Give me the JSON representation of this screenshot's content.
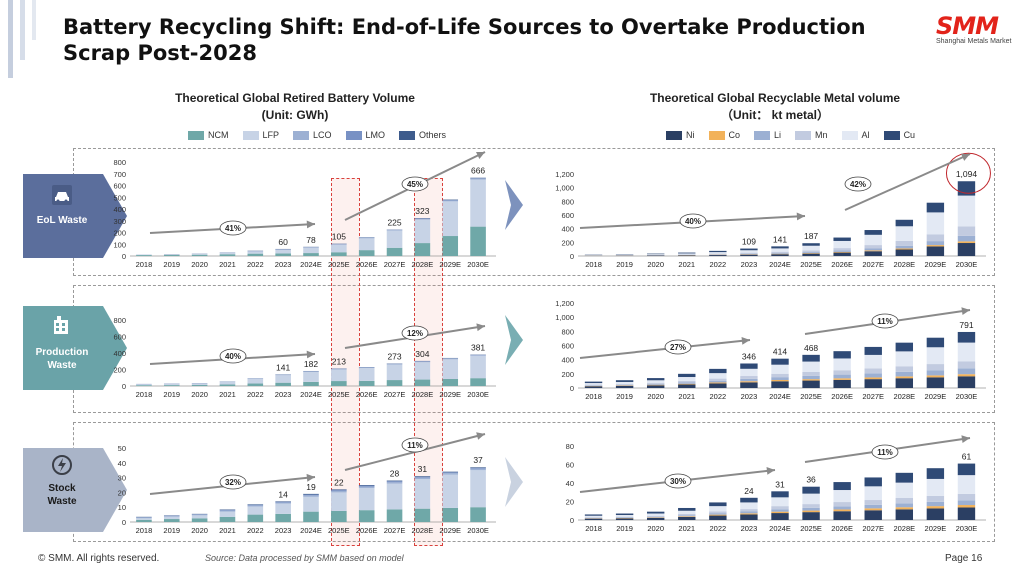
{
  "title": "Battery Recycling Shift: End-of-Life Sources to Overtake Production Scrap Post-2028",
  "logo": {
    "main": "SMM",
    "sub": "Shanghai Metals Market"
  },
  "left_title": {
    "line1": "Theoretical Global Retired Battery Volume",
    "line2": "(Unit: GWh)"
  },
  "right_title": {
    "line1": "Theoretical Global Recyclable Metal volume",
    "line2": "（Unit： kt metal）"
  },
  "left_legend": [
    {
      "name": "NCM",
      "color": "#6fa8a8"
    },
    {
      "name": "LFP",
      "color": "#c7d3e6"
    },
    {
      "name": "LCO",
      "color": "#9cb0d3"
    },
    {
      "name": "LMO",
      "color": "#7891c4"
    },
    {
      "name": "Others",
      "color": "#3d5b8c"
    }
  ],
  "right_legend": [
    {
      "name": "Ni",
      "color": "#2b3f63"
    },
    {
      "name": "Co",
      "color": "#f2b25a"
    },
    {
      "name": "Li",
      "color": "#9cb0d3"
    },
    {
      "name": "Mn",
      "color": "#c2cbe0"
    },
    {
      "name": "Al",
      "color": "#e3e9f4"
    },
    {
      "name": "Cu",
      "color": "#2f4a76"
    }
  ],
  "row_labels": [
    {
      "line1": "EoL Waste",
      "line2": "",
      "color": "#5b6e9c"
    },
    {
      "line1": "Production",
      "line2": "Waste",
      "color": "#6aa3a8"
    },
    {
      "line1": "Stock",
      "line2": "Waste",
      "color": "#a9b4c8"
    }
  ],
  "footer": "© SMM. All rights reserved.",
  "source": "Source: Data processed by SMM based on model",
  "page": "Page 16",
  "chart_data": [
    {
      "type": "bar",
      "stacked": true,
      "unit": "GWh",
      "categories": [
        "2018",
        "2019",
        "2020",
        "2021",
        "2022",
        "2023",
        "2024E",
        "2025E",
        "2026E",
        "2027E",
        "2028E",
        "2029E",
        "2030E"
      ],
      "ylim": [
        0,
        800
      ],
      "yticks": [
        0,
        100,
        200,
        300,
        400,
        500,
        600,
        700,
        800
      ],
      "totals": [
        12,
        15,
        20,
        30,
        45,
        60,
        78,
        105,
        160,
        225,
        323,
        480,
        666
      ],
      "data_labels": {
        "2023": "60",
        "2024E": "78",
        "2025E": "105",
        "2027E": "225",
        "2028E": "323",
        "2030E": "666"
      },
      "series": [
        {
          "name": "NCM",
          "values": [
            8,
            9,
            11,
            15,
            20,
            22,
            25,
            32,
            50,
            70,
            110,
            170,
            250
          ]
        },
        {
          "name": "LFP",
          "values": [
            2,
            3,
            5,
            10,
            18,
            30,
            45,
            63,
            100,
            145,
            200,
            295,
            400
          ]
        },
        {
          "name": "LCO",
          "values": [
            1,
            1,
            2,
            2,
            3,
            4,
            4,
            5,
            5,
            5,
            6,
            7,
            7
          ]
        },
        {
          "name": "LMO",
          "values": [
            1,
            1,
            1,
            2,
            2,
            2,
            2,
            3,
            3,
            3,
            4,
            4,
            5
          ]
        },
        {
          "name": "Others",
          "values": [
            0,
            1,
            1,
            1,
            2,
            2,
            2,
            2,
            2,
            2,
            3,
            4,
            4
          ]
        }
      ],
      "trend_labels": [
        "41%",
        "45%"
      ]
    },
    {
      "type": "bar",
      "stacked": true,
      "unit": "kt metal",
      "categories": [
        "2018",
        "2019",
        "2020",
        "2021",
        "2022",
        "2023",
        "2024E",
        "2025E",
        "2026E",
        "2027E",
        "2028E",
        "2029E",
        "2030E"
      ],
      "ylim": [
        0,
        1200
      ],
      "yticks": [
        "0",
        "200",
        "400",
        "600",
        "800",
        "1,000",
        "1,200"
      ],
      "totals": [
        20,
        25,
        35,
        50,
        75,
        109,
        141,
        187,
        270,
        380,
        530,
        780,
        1094
      ],
      "data_labels": {
        "2023": "109",
        "2024E": "141",
        "2025E": "187",
        "2030E": "1,094"
      },
      "series": [
        {
          "name": "Ni",
          "values": [
            4,
            5,
            7,
            10,
            14,
            20,
            26,
            35,
            50,
            70,
            95,
            140,
            190
          ]
        },
        {
          "name": "Co",
          "values": [
            2,
            2,
            3,
            4,
            5,
            6,
            7,
            8,
            10,
            12,
            15,
            20,
            24
          ]
        },
        {
          "name": "Li",
          "values": [
            2,
            2,
            3,
            4,
            6,
            8,
            11,
            14,
            20,
            28,
            40,
            58,
            80
          ]
        },
        {
          "name": "Mn",
          "values": [
            3,
            4,
            5,
            7,
            10,
            15,
            19,
            25,
            36,
            50,
            70,
            100,
            140
          ]
        },
        {
          "name": "Al",
          "values": [
            5,
            7,
            9,
            13,
            22,
            35,
            48,
            68,
            104,
            150,
            215,
            320,
            450
          ]
        },
        {
          "name": "Cu",
          "values": [
            4,
            5,
            8,
            12,
            18,
            25,
            30,
            37,
            50,
            70,
            95,
            142,
            210
          ]
        }
      ],
      "trend_labels": [
        "40%",
        "42%"
      ]
    },
    {
      "type": "bar",
      "stacked": true,
      "unit": "GWh",
      "categories": [
        "2018",
        "2019",
        "2020",
        "2021",
        "2022",
        "2023",
        "2024E",
        "2025E",
        "2026E",
        "2027E",
        "2028E",
        "2029E",
        "2030E"
      ],
      "ylim": [
        0,
        800
      ],
      "yticks": [
        0,
        200,
        400,
        600,
        800
      ],
      "totals": [
        25,
        30,
        35,
        55,
        95,
        141,
        182,
        213,
        230,
        273,
        304,
        340,
        381
      ],
      "data_labels": {
        "2023": "141",
        "2024E": "182",
        "2025E": "213",
        "2027E": "273",
        "2028E": "304",
        "2030E": "381"
      },
      "series": [
        {
          "name": "NCM",
          "values": [
            10,
            11,
            12,
            18,
            30,
            40,
            50,
            60,
            62,
            72,
            78,
            85,
            95
          ]
        },
        {
          "name": "LFP",
          "values": [
            10,
            13,
            16,
            30,
            57,
            90,
            120,
            140,
            155,
            186,
            210,
            238,
            270
          ]
        },
        {
          "name": "LCO",
          "values": [
            3,
            3,
            4,
            4,
            5,
            6,
            7,
            7,
            7,
            8,
            8,
            9,
            9
          ]
        },
        {
          "name": "LMO",
          "values": [
            1,
            2,
            2,
            2,
            2,
            3,
            3,
            4,
            4,
            4,
            5,
            5,
            4
          ]
        },
        {
          "name": "Others",
          "values": [
            1,
            1,
            1,
            1,
            1,
            2,
            2,
            2,
            2,
            3,
            3,
            3,
            3
          ]
        }
      ],
      "trend_labels": [
        "40%",
        "12%"
      ]
    },
    {
      "type": "bar",
      "stacked": true,
      "unit": "kt metal",
      "categories": [
        "2018",
        "2019",
        "2020",
        "2021",
        "2022",
        "2023",
        "2024E",
        "2025E",
        "2026E",
        "2027E",
        "2028E",
        "2029E",
        "2030E"
      ],
      "ylim": [
        0,
        1200
      ],
      "yticks": [
        "0",
        "200",
        "400",
        "600",
        "800",
        "1,000",
        "1,200"
      ],
      "totals": [
        90,
        110,
        140,
        200,
        270,
        346,
        414,
        468,
        520,
        580,
        640,
        710,
        791
      ],
      "data_labels": {
        "2023": "346",
        "2024E": "414",
        "2025E": "468",
        "2030E": "791"
      },
      "series": [
        {
          "name": "Ni",
          "values": [
            25,
            30,
            38,
            50,
            65,
            80,
            95,
            105,
            115,
            125,
            138,
            150,
            165
          ]
        },
        {
          "name": "Co",
          "values": [
            5,
            6,
            8,
            10,
            13,
            16,
            18,
            20,
            22,
            24,
            26,
            28,
            30
          ]
        },
        {
          "name": "Li",
          "values": [
            8,
            10,
            13,
            18,
            25,
            33,
            40,
            46,
            52,
            58,
            65,
            73,
            82
          ]
        },
        {
          "name": "Mn",
          "values": [
            10,
            12,
            15,
            22,
            30,
            40,
            48,
            55,
            62,
            70,
            78,
            87,
            97
          ]
        },
        {
          "name": "Al",
          "values": [
            22,
            27,
            35,
            55,
            77,
            102,
            128,
            147,
            166,
            190,
            210,
            237,
            267
          ]
        },
        {
          "name": "Cu",
          "values": [
            20,
            25,
            31,
            45,
            60,
            75,
            85,
            95,
            103,
            113,
            123,
            135,
            150
          ]
        }
      ],
      "trend_labels": [
        "27%",
        "11%"
      ]
    },
    {
      "type": "bar",
      "stacked": true,
      "unit": "GWh",
      "categories": [
        "2018",
        "2019",
        "2020",
        "2021",
        "2022",
        "2023",
        "2024E",
        "2025E",
        "2026E",
        "2027E",
        "2028E",
        "2029E",
        "2030E"
      ],
      "ylim": [
        0,
        50
      ],
      "yticks": [
        0,
        10,
        20,
        30,
        40,
        50
      ],
      "totals": [
        3.5,
        4.5,
        5.5,
        8.5,
        12,
        14,
        19,
        22,
        25,
        28,
        31,
        34,
        37
      ],
      "data_labels": {
        "2023": "14",
        "2024E": "19",
        "2025E": "22",
        "2027E": "28",
        "2028E": "31",
        "2030E": "37"
      },
      "series": [
        {
          "name": "NCM",
          "values": [
            1.5,
            2,
            2.5,
            3.5,
            5,
            5.5,
            7,
            7.5,
            8,
            8.5,
            9,
            9.5,
            10
          ]
        },
        {
          "name": "LFP",
          "values": [
            1,
            1.5,
            2,
            3.5,
            5.5,
            7,
            10,
            12.5,
            15,
            17.5,
            20,
            22.5,
            25
          ]
        },
        {
          "name": "LCO",
          "values": [
            0.5,
            0.5,
            0.5,
            0.7,
            0.7,
            0.7,
            1,
            1,
            1,
            1,
            1,
            1,
            1
          ]
        },
        {
          "name": "LMO",
          "values": [
            0.3,
            0.3,
            0.3,
            0.5,
            0.5,
            0.5,
            0.6,
            0.6,
            0.6,
            0.6,
            0.6,
            0.6,
            0.6
          ]
        },
        {
          "name": "Others",
          "values": [
            0.2,
            0.2,
            0.2,
            0.3,
            0.3,
            0.3,
            0.4,
            0.4,
            0.4,
            0.4,
            0.4,
            0.4,
            0.4
          ]
        }
      ],
      "trend_labels": [
        "32%",
        "11%"
      ]
    },
    {
      "type": "bar",
      "stacked": true,
      "unit": "kt metal",
      "categories": [
        "2018",
        "2019",
        "2020",
        "2021",
        "2022",
        "2023",
        "2024E",
        "2025E",
        "2026E",
        "2027E",
        "2028E",
        "2029E",
        "2030E"
      ],
      "ylim": [
        0,
        80
      ],
      "yticks": [
        0,
        20,
        40,
        60,
        80
      ],
      "totals": [
        6,
        7,
        9,
        13,
        19,
        24,
        31,
        36,
        41,
        46,
        51,
        56,
        61
      ],
      "data_labels": {
        "2023": "24",
        "2024E": "31",
        "2025E": "36",
        "2030E": "61"
      },
      "series": [
        {
          "name": "Ni",
          "values": [
            1.5,
            1.8,
            2.3,
            3.3,
            4.8,
            6,
            7.5,
            8.5,
            9.5,
            10.5,
            11.5,
            12.5,
            13.5
          ]
        },
        {
          "name": "Co",
          "values": [
            0.4,
            0.4,
            0.5,
            0.7,
            1,
            1.2,
            1.5,
            1.7,
            1.9,
            2.1,
            2.3,
            2.5,
            2.7
          ]
        },
        {
          "name": "Li",
          "values": [
            0.5,
            0.6,
            0.8,
            1.1,
            1.6,
            2,
            2.6,
            3,
            3.4,
            3.8,
            4.2,
            4.6,
            5
          ]
        },
        {
          "name": "Mn",
          "values": [
            0.7,
            0.8,
            1,
            1.4,
            2,
            2.6,
            3.4,
            4,
            4.6,
            5.2,
            5.8,
            6.4,
            7
          ]
        },
        {
          "name": "Al",
          "values": [
            1.5,
            1.8,
            2.4,
            3.5,
            5.6,
            7.2,
            9.5,
            11.3,
            13,
            14.8,
            16.6,
            18.4,
            20.3
          ]
        },
        {
          "name": "Cu",
          "values": [
            1.4,
            1.6,
            2,
            3,
            4,
            5,
            6.5,
            7.5,
            8.6,
            9.6,
            10.6,
            11.6,
            12.5
          ]
        }
      ],
      "trend_labels": [
        "30%",
        "11%"
      ]
    }
  ]
}
